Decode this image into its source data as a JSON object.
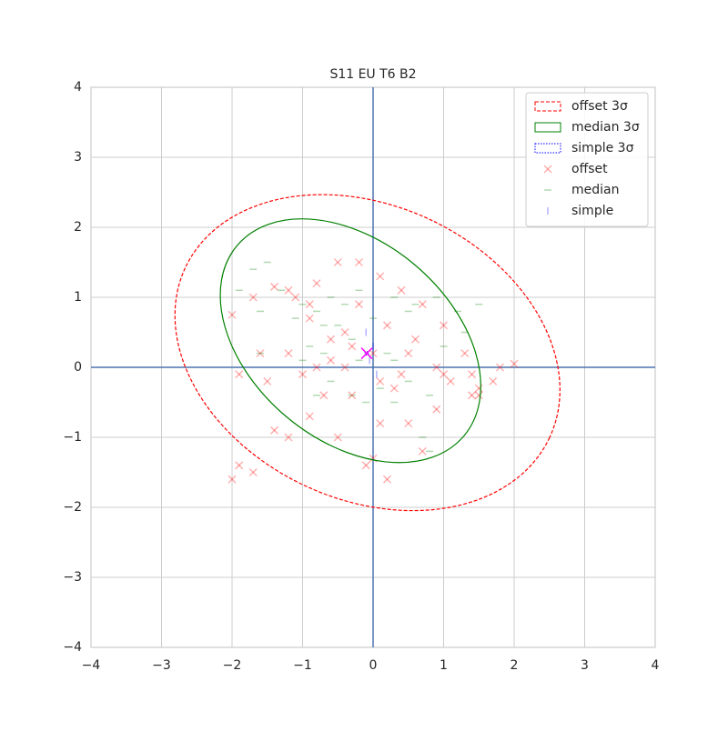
{
  "chart_data": {
    "type": "scatter",
    "title": "S11 EU T6 B2",
    "xlim": [
      -4,
      4
    ],
    "ylim": [
      -4,
      4
    ],
    "xticks": [
      {
        "value": -4,
        "label": "−4"
      },
      {
        "value": -3,
        "label": "−3"
      },
      {
        "value": -2,
        "label": "−2"
      },
      {
        "value": -1,
        "label": "−1"
      },
      0,
      1,
      2,
      3,
      4
    ],
    "yticks": [
      {
        "value": -4,
        "label": "−4"
      },
      {
        "value": -3,
        "label": "−3"
      },
      {
        "value": -2,
        "label": "−2"
      },
      {
        "value": -1,
        "label": "−1"
      },
      0,
      1,
      2,
      3,
      4
    ],
    "grid": true,
    "legend": "upper right",
    "ellipses": [
      {
        "name": "offset 3σ",
        "color": "#ff0000",
        "style": "dashed",
        "center": [
          -0.08,
          0.21
        ],
        "width": 5.7,
        "height": 4.2,
        "angle": -25
      },
      {
        "name": "median 3σ",
        "color": "#008000",
        "style": "solid",
        "center": [
          -0.32,
          0.38
        ],
        "width": 4.2,
        "height": 2.84,
        "angle": -40
      },
      {
        "name": "simple 3σ",
        "color": "#0000ff",
        "style": "dotted",
        "center": [
          -0.09,
          0.2
        ],
        "width": 0.05,
        "height": 0.05,
        "angle": 0
      }
    ],
    "scatter": [
      {
        "name": "offset",
        "color": "#ff0000",
        "marker": "x",
        "x": [
          -2,
          -1.7,
          -1.4,
          -1.1,
          -0.8,
          -0.5,
          -0.2,
          0.1,
          0.4,
          0.7,
          1.0,
          1.3,
          1.5,
          1.4,
          1.1,
          0.9,
          0.7,
          0.5,
          0.3,
          0.1,
          0.0,
          0.2,
          -0.1,
          -0.5,
          -0.9,
          -1.4,
          -1.9,
          -2.0,
          -1.7,
          -1.2,
          -0.7,
          -0.4,
          -0.6,
          -0.9,
          -1.2,
          -0.9,
          -0.4,
          0.0,
          0.4,
          0.9,
          1.4,
          1.8,
          2.0,
          1.7,
          1.5,
          1.0,
          0.5,
          0.2,
          -0.2,
          -0.3,
          -0.6,
          -1.0,
          -1.5,
          -1.9,
          -1.6,
          -1.2,
          -0.8,
          -0.3,
          0.1,
          0.6
        ],
        "y": [
          0.75,
          1.0,
          1.15,
          1.0,
          1.2,
          1.5,
          1.5,
          1.3,
          1.1,
          0.9,
          0.6,
          0.2,
          -0.3,
          -0.4,
          -0.2,
          -0.6,
          -1.2,
          -0.8,
          -0.3,
          -0.8,
          -1.3,
          -1.6,
          -1.4,
          -1.0,
          -0.7,
          -0.9,
          -1.4,
          -1.6,
          -1.5,
          -1.0,
          -0.4,
          0.0,
          0.4,
          0.7,
          1.1,
          0.9,
          0.5,
          0.2,
          -0.1,
          0.0,
          -0.1,
          0.0,
          0.05,
          -0.2,
          -0.4,
          -0.1,
          0.2,
          0.6,
          0.9,
          0.3,
          0.1,
          -0.1,
          -0.2,
          -0.1,
          0.2,
          0.2,
          0.0,
          -0.4,
          -0.2,
          0.4
        ]
      },
      {
        "name": "median",
        "color": "#008000",
        "marker": "_",
        "x": [
          -1.6,
          -1.6,
          -1.5,
          -1.7,
          -1.9,
          -1.3,
          -1.0,
          -0.8,
          -0.6,
          -0.5,
          -0.3,
          -0.2,
          -0.3,
          -0.1,
          0.1,
          0.3,
          0.2,
          0.5,
          0.9,
          1.2,
          1.5,
          1.3,
          1.0,
          0.8,
          0.7,
          0.8,
          0.5,
          0.3,
          0.0,
          -0.4,
          -0.7,
          -0.9,
          -0.7,
          -0.6,
          -0.8,
          -1.0,
          -1.1,
          0.3,
          0.6,
          -0.2
        ],
        "y": [
          0.2,
          0.8,
          1.5,
          1.4,
          1.1,
          1.1,
          0.9,
          0.8,
          1.0,
          0.6,
          0.4,
          0.1,
          -0.4,
          -0.5,
          -0.3,
          -0.5,
          0.2,
          0.8,
          1.0,
          0.8,
          0.9,
          0.5,
          0.3,
          -0.4,
          -1.0,
          -1.2,
          -0.2,
          0.1,
          0.7,
          0.9,
          0.6,
          0.3,
          0.2,
          -0.2,
          -0.4,
          0.1,
          0.7,
          1.0,
          0.9,
          1.1
        ]
      },
      {
        "name": "simple",
        "color": "#0000ff",
        "marker": "|",
        "x": [
          -0.05,
          0,
          -0.1,
          0.05
        ],
        "y": [
          0.1,
          0.3,
          0.5,
          -0.1
        ]
      }
    ],
    "center": {
      "color": "#ff00ff",
      "x": -0.09,
      "y": 0.2
    }
  }
}
